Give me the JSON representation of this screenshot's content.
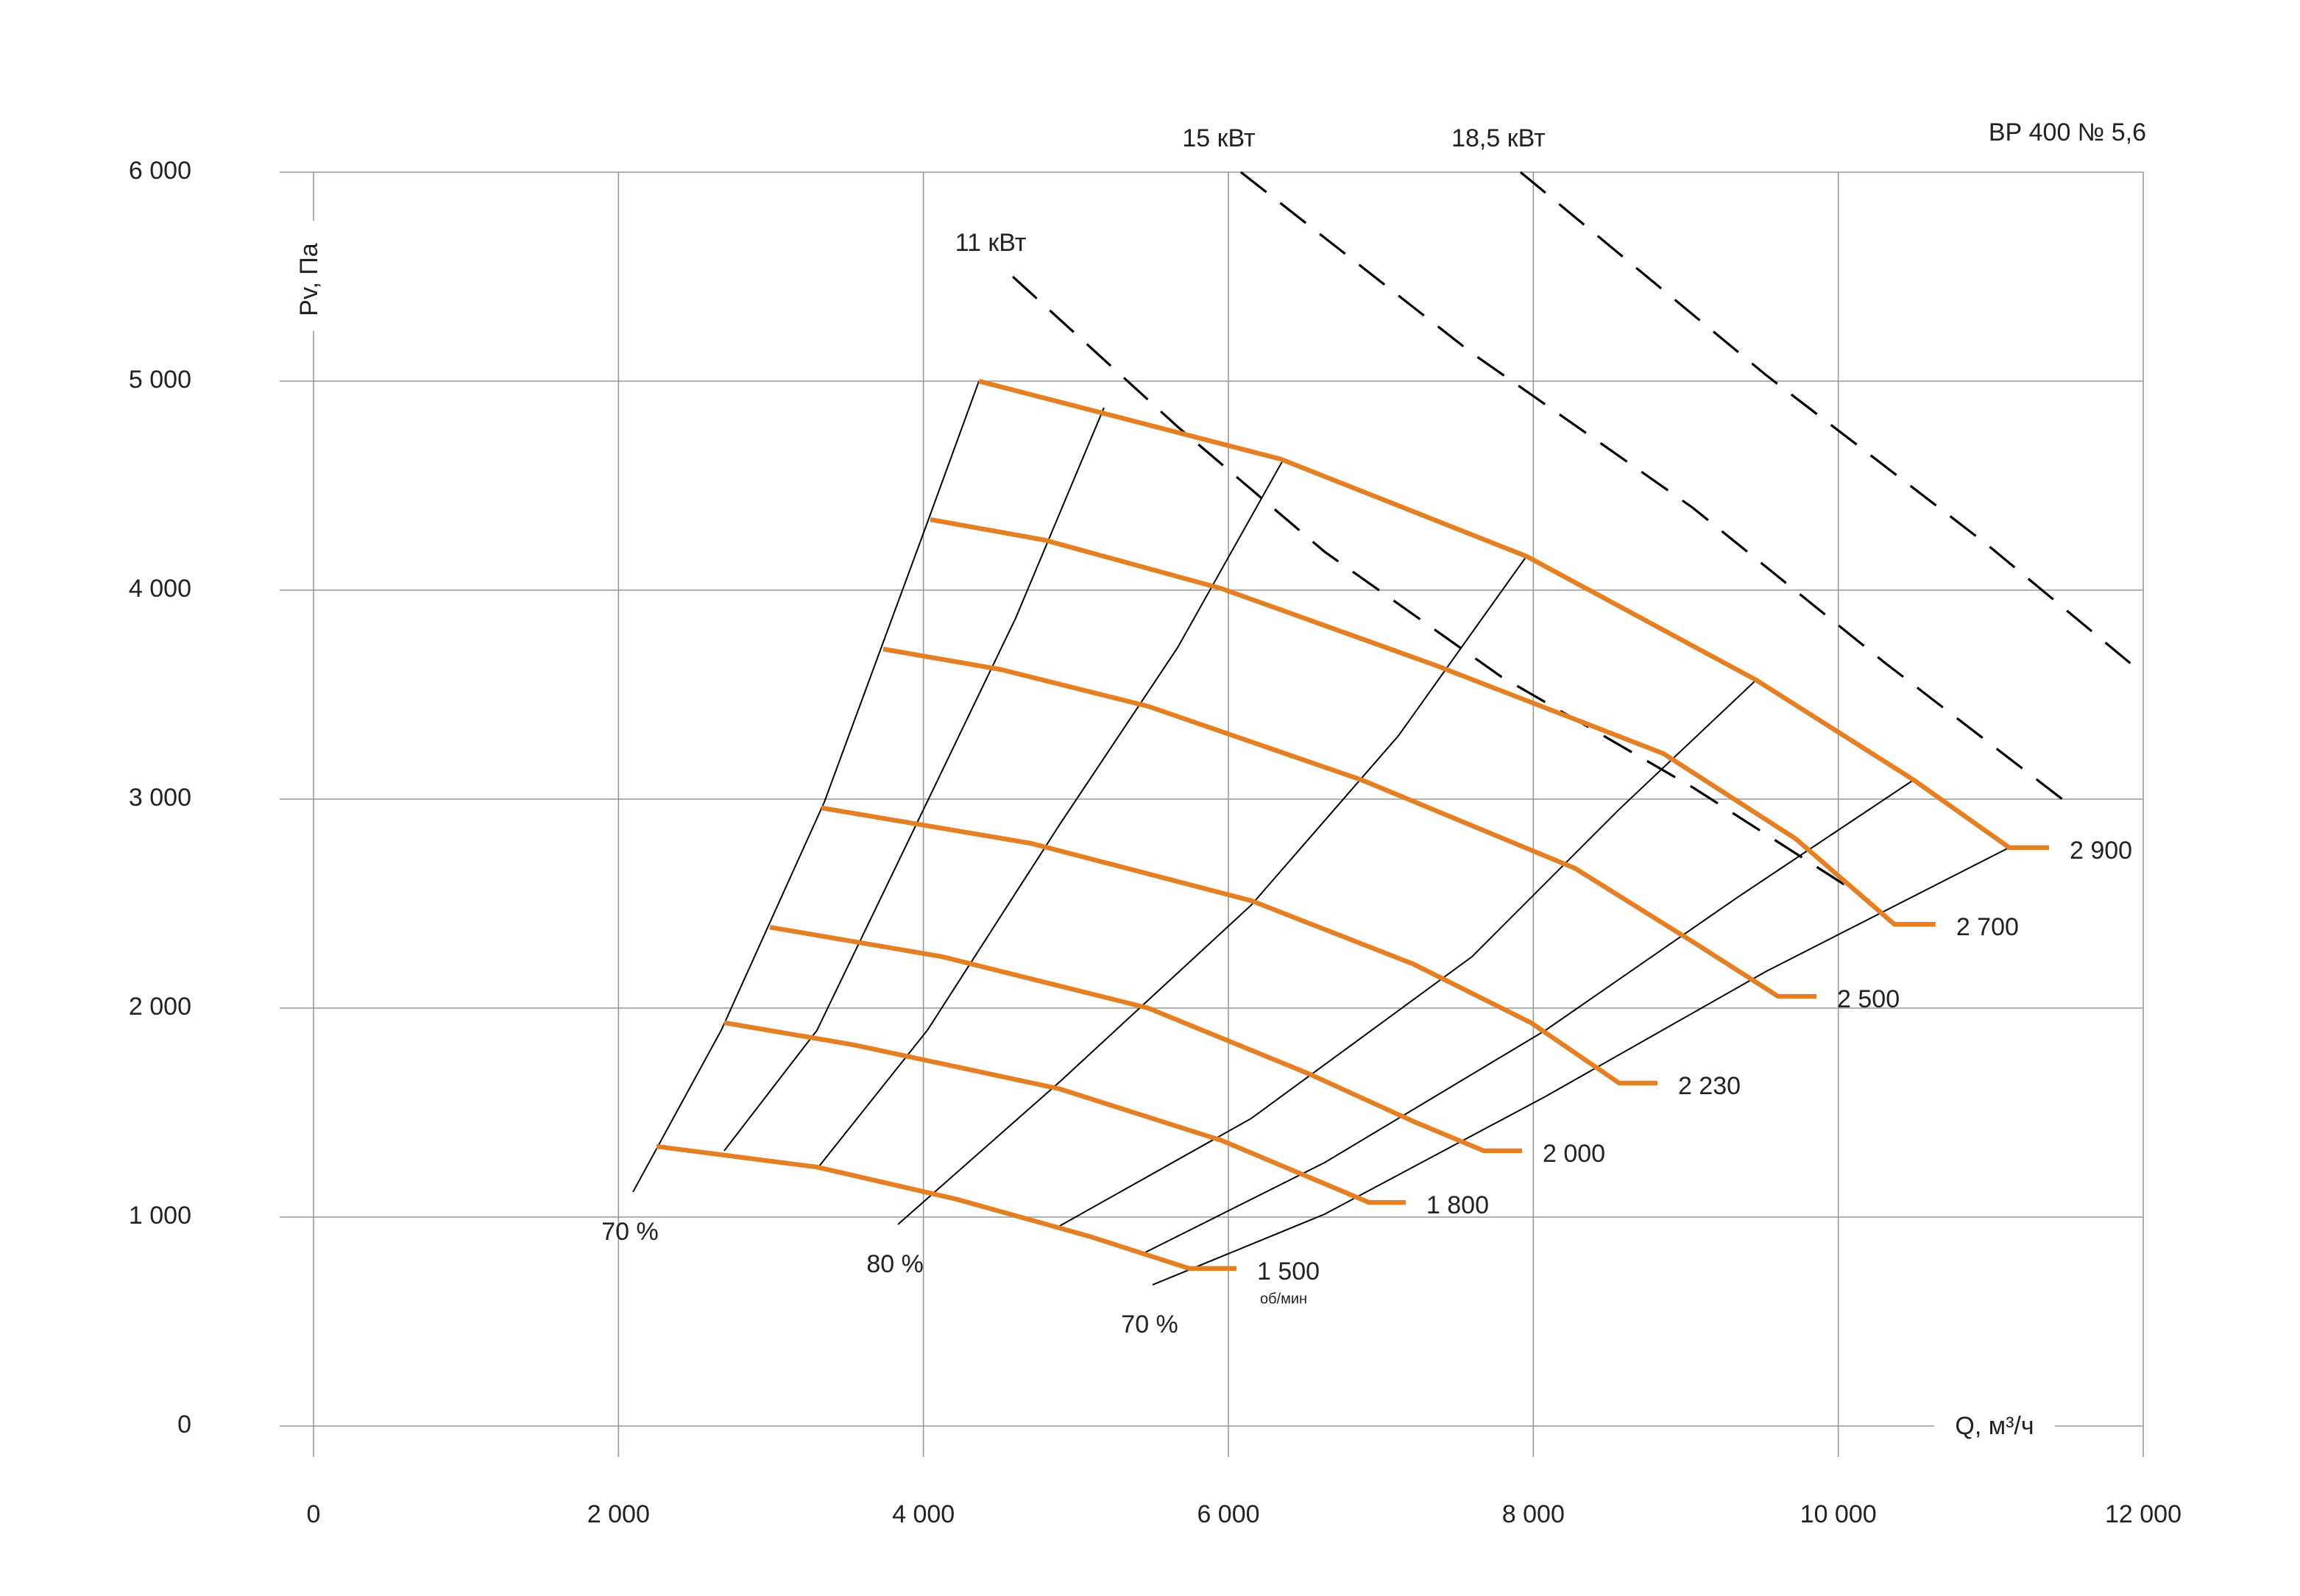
{
  "chart_data": {
    "type": "line",
    "title": "ВР 400 № 5,6",
    "x_label": "Q, м³/ч",
    "y_label": "Pv, Па",
    "xlim": [
      0,
      12000
    ],
    "ylim": [
      0,
      6000
    ],
    "xticks": [
      0,
      {
        "value": 2000,
        "label": "2 000"
      },
      {
        "value": 4000,
        "label": "4 000"
      },
      {
        "value": 6000,
        "label": "6 000"
      },
      {
        "value": 8000,
        "label": "8 000"
      },
      {
        "value": 10000,
        "label": "10 000"
      },
      {
        "value": 12000,
        "label": "12 000"
      }
    ],
    "yticks": [
      0,
      {
        "value": 1000,
        "label": "1 000"
      },
      {
        "value": 2000,
        "label": "2 000"
      },
      {
        "value": 3000,
        "label": "3 000"
      },
      {
        "value": 4000,
        "label": "4 000"
      },
      {
        "value": 5000,
        "label": "5 000"
      },
      {
        "value": 6000,
        "label": "6 000"
      }
    ],
    "grid": true,
    "rpm_unit": "об/мин",
    "series": [
      {
        "name": "1 500",
        "color": "#e67e22",
        "x": [
          2249,
          3302,
          4219,
          5087,
          5744,
          6053
        ],
        "values": [
          1338,
          1239,
          1085,
          908,
          754,
          754
        ]
      },
      {
        "name": "1 800",
        "color": "#e67e22",
        "x": [
          2693,
          3543,
          4894,
          5957,
          6922,
          7163
        ],
        "values": [
          1930,
          1824,
          1613,
          1366,
          1070,
          1070
        ]
      },
      {
        "name": "2 000",
        "color": "#e67e22",
        "x": [
          2993,
          4122,
          5474,
          6536,
          7212,
          7675,
          7926
        ],
        "values": [
          2387,
          2246,
          2000,
          1683,
          1458,
          1317,
          1317
        ]
      },
      {
        "name": "2 230",
        "color": "#e67e22",
        "x": [
          3331,
          4701,
          6150,
          7212,
          7984,
          8563,
          8814
        ],
        "values": [
          2958,
          2789,
          2514,
          2211,
          1930,
          1641,
          1641
        ]
      },
      {
        "name": "2 500",
        "color": "#e67e22",
        "x": [
          3736,
          4508,
          5474,
          6873,
          8273,
          9046,
          9606,
          9857
        ],
        "values": [
          3718,
          3620,
          3444,
          3092,
          2669,
          2317,
          2056,
          2056
        ]
      },
      {
        "name": "2 700",
        "color": "#e67e22",
        "x": [
          4045,
          4798,
          5957,
          7356,
          8853,
          9721,
          10368,
          10638
        ],
        "values": [
          4338,
          4239,
          4007,
          3641,
          3218,
          2810,
          2401,
          2401
        ]
      },
      {
        "name": "2 900",
        "color": "#e67e22",
        "x": [
          4364,
          6343,
          7955,
          9461,
          10494,
          11121,
          11382
        ],
        "values": [
          5000,
          4627,
          4162,
          3570,
          3092,
          2768,
          2768
        ]
      }
    ],
    "power_lines": [
      {
        "name": "11 кВт",
        "x": [
          4586,
          5667,
          6632,
          7791,
          9046,
          10204
        ],
        "values": [
          5500,
          4782,
          4183,
          3585,
          3056,
          2514
        ]
      },
      {
        "name": "15 кВт",
        "x": [
          6082,
          7598,
          9046,
          10301,
          11556
        ],
        "values": [
          6000,
          5134,
          4394,
          3655,
          2951
        ]
      },
      {
        "name": "18,5 кВт",
        "x": [
          7916,
          9528,
          10976,
          12000
        ],
        "values": [
          6000,
          5028,
          4218,
          3599
        ]
      }
    ],
    "efficiency_lines": [
      {
        "label": "70 %",
        "x": [
          2095,
          2674,
          3350,
          4026,
          4364
        ],
        "values": [
          1120,
          1894,
          2986,
          4324,
          5000
        ]
      },
      {
        "x": [
          2693,
          3302,
          3977,
          4605,
          5184
        ],
        "values": [
          1317,
          1894,
          2915,
          3866,
          4873
        ]
      },
      {
        "x": [
          3311,
          4026,
          4895,
          5667,
          6362
        ],
        "values": [
          1239,
          1894,
          2880,
          3725,
          4627
        ]
      },
      {
        "label": "80 %",
        "x": [
          3833,
          4895,
          6150,
          7115,
          7955
        ],
        "values": [
          965,
          1648,
          2493,
          3303,
          4162
        ]
      },
      {
        "x": [
          4895,
          6150,
          7598,
          8563,
          9461
        ],
        "values": [
          958,
          1472,
          2246,
          2951,
          3570
        ]
      },
      {
        "x": [
          5455,
          6632,
          8080,
          9335,
          10494
        ],
        "values": [
          831,
          1261,
          1894,
          2528,
          3092
        ]
      },
      {
        "label": "70 %",
        "x": [
          5503,
          6632,
          8080,
          9528,
          11121
        ],
        "values": [
          676,
          1014,
          1577,
          2176,
          2768
        ]
      }
    ]
  }
}
